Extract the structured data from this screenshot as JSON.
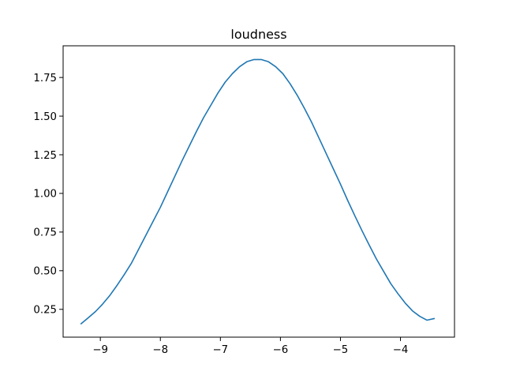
{
  "chart_data": {
    "type": "line",
    "title": "loudness",
    "xlabel": "",
    "ylabel": "",
    "xlim": [
      -9.62,
      -3.1
    ],
    "ylim": [
      0.07,
      1.955
    ],
    "xticks": [
      -9,
      -8,
      -7,
      -6,
      -5,
      -4
    ],
    "xtick_labels": [
      "−9",
      "−8",
      "−7",
      "−6",
      "−5",
      "−4"
    ],
    "yticks": [
      0.25,
      0.5,
      0.75,
      1.0,
      1.25,
      1.5,
      1.75
    ],
    "ytick_labels": [
      "0.25",
      "0.50",
      "0.75",
      "1.00",
      "1.25",
      "1.50",
      "1.75"
    ],
    "grid": false,
    "series": [
      {
        "color": "#1f77b4",
        "x": [
          -9.32,
          -9.2,
          -9.08,
          -8.96,
          -8.84,
          -8.72,
          -8.6,
          -8.48,
          -8.36,
          -8.24,
          -8.12,
          -8.0,
          -7.88,
          -7.76,
          -7.64,
          -7.52,
          -7.4,
          -7.28,
          -7.16,
          -7.04,
          -6.92,
          -6.8,
          -6.68,
          -6.56,
          -6.44,
          -6.32,
          -6.2,
          -6.08,
          -5.96,
          -5.84,
          -5.72,
          -5.6,
          -5.48,
          -5.36,
          -5.24,
          -5.12,
          -5.0,
          -4.88,
          -4.76,
          -4.64,
          -4.52,
          -4.4,
          -4.28,
          -4.16,
          -4.04,
          -3.92,
          -3.8,
          -3.68,
          -3.56,
          -3.44
        ],
        "y": [
          0.157,
          0.196,
          0.236,
          0.285,
          0.341,
          0.406,
          0.476,
          0.55,
          0.64,
          0.73,
          0.82,
          0.91,
          1.01,
          1.11,
          1.21,
          1.305,
          1.4,
          1.49,
          1.57,
          1.65,
          1.72,
          1.775,
          1.82,
          1.852,
          1.866,
          1.866,
          1.852,
          1.82,
          1.775,
          1.71,
          1.635,
          1.55,
          1.46,
          1.36,
          1.26,
          1.16,
          1.06,
          0.955,
          0.855,
          0.758,
          0.665,
          0.575,
          0.495,
          0.415,
          0.35,
          0.29,
          0.24,
          0.205,
          0.18,
          0.19
        ]
      }
    ]
  }
}
